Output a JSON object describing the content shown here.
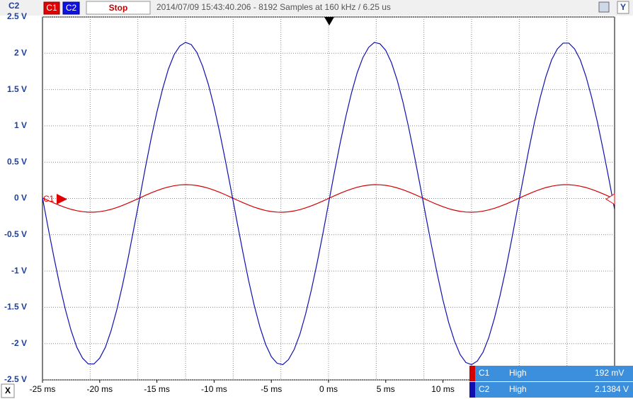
{
  "toolbar": {
    "stop": "Stop",
    "info": "2014/07/09 15:43:40.206 - 8192 Samples at 160 kHz / 6.25 us",
    "y_button": "Y",
    "x_button": "X"
  },
  "chart_data": {
    "type": "line",
    "x": [
      -25,
      -24.5,
      -24,
      -23.5,
      -23,
      -22.5,
      -22,
      -21.5,
      -21,
      -20.5,
      -20,
      -19.5,
      -19,
      -18.5,
      -18,
      -17.5,
      -17,
      -16.5,
      -16,
      -15.5,
      -15,
      -14.5,
      -14,
      -13.5,
      -13,
      -12.5,
      -12,
      -11.5,
      -11,
      -10.5,
      -10,
      -9.5,
      -9,
      -8.5,
      -8,
      -7.5,
      -7,
      -6.5,
      -6,
      -5.5,
      -5,
      -4.5,
      -4,
      -3.5,
      -3,
      -2.5,
      -2,
      -1.5,
      -1,
      -0.5,
      0,
      0.5,
      1,
      1.5,
      2,
      2.5,
      3,
      3.5,
      4,
      4.5,
      5,
      5.5,
      6,
      6.5,
      7,
      7.5,
      8,
      8.5,
      9,
      9.5,
      10,
      10.5,
      11,
      11.5,
      12,
      12.5,
      13,
      13.5,
      14,
      14.5,
      15,
      15.5,
      16,
      16.5,
      17,
      17.5,
      18,
      18.5,
      19,
      19.5,
      20,
      20.5,
      21,
      21.5,
      22,
      22.5,
      23,
      23.5,
      24,
      24.5,
      25
    ],
    "series": [
      {
        "name": "C1",
        "color": "#d40000",
        "values": [
          0.007,
          -0.029,
          -0.063,
          -0.096,
          -0.125,
          -0.15,
          -0.169,
          -0.182,
          -0.189,
          -0.189,
          -0.182,
          -0.169,
          -0.15,
          -0.125,
          -0.096,
          -0.063,
          -0.029,
          0.007,
          0.043,
          0.077,
          0.108,
          0.136,
          0.158,
          0.175,
          0.186,
          0.19,
          0.187,
          0.178,
          0.162,
          0.141,
          0.114,
          0.083,
          0.05,
          0.014,
          -0.022,
          -0.057,
          -0.09,
          -0.12,
          -0.145,
          -0.166,
          -0.18,
          -0.188,
          -0.19,
          -0.184,
          -0.172,
          -0.154,
          -0.13,
          -0.102,
          -0.07,
          -0.036,
          0,
          0.036,
          0.07,
          0.102,
          0.13,
          0.154,
          0.172,
          0.184,
          0.19,
          0.188,
          0.18,
          0.166,
          0.145,
          0.12,
          0.09,
          0.057,
          0.022,
          -0.014,
          -0.05,
          -0.083,
          -0.114,
          -0.141,
          -0.162,
          -0.178,
          -0.187,
          -0.19,
          -0.186,
          -0.175,
          -0.158,
          -0.136,
          -0.108,
          -0.077,
          -0.043,
          -0.007,
          0.029,
          0.063,
          0.096,
          0.125,
          0.15,
          0.169,
          0.182,
          0.189,
          0.189,
          0.182,
          0.169,
          0.15,
          0.125,
          0.096,
          0.063,
          0.029,
          -0.007
        ]
      },
      {
        "name": "C2",
        "color": "#1010b0",
        "values": [
          0.01,
          -0.41,
          -0.81,
          -1.19,
          -1.53,
          -1.82,
          -2.05,
          -2.2,
          -2.28,
          -2.28,
          -2.2,
          -2.05,
          -1.82,
          -1.53,
          -1.19,
          -0.81,
          -0.4,
          0.01,
          0.43,
          0.83,
          1.19,
          1.51,
          1.78,
          1.98,
          2.1,
          2.15,
          2.12,
          2.01,
          1.82,
          1.57,
          1.26,
          0.9,
          0.51,
          0.1,
          -0.32,
          -0.73,
          -1.12,
          -1.47,
          -1.77,
          -2.01,
          -2.18,
          -2.27,
          -2.29,
          -2.22,
          -2.08,
          -1.87,
          -1.59,
          -1.26,
          -0.89,
          -0.49,
          -0.07,
          0.35,
          0.75,
          1.12,
          1.45,
          1.73,
          1.94,
          2.08,
          2.15,
          2.13,
          2.04,
          1.87,
          1.63,
          1.33,
          0.98,
          0.59,
          0.18,
          -0.24,
          -0.65,
          -1.04,
          -1.4,
          -1.71,
          -1.96,
          -2.15,
          -2.26,
          -2.29,
          -2.24,
          -2.12,
          -1.92,
          -1.65,
          -1.33,
          -0.97,
          -0.57,
          -0.15,
          0.26,
          0.67,
          1.05,
          1.39,
          1.68,
          1.91,
          2.06,
          2.14,
          2.14,
          2.06,
          1.91,
          1.68,
          1.39,
          1.05,
          0.67,
          0.27,
          -0.15
        ]
      }
    ],
    "xlim": [
      -25,
      25
    ],
    "xticks": [
      {
        "value": -25,
        "label": "-25 ms"
      },
      {
        "value": -20,
        "label": "-20 ms"
      },
      {
        "value": -15,
        "label": "-15 ms"
      },
      {
        "value": -10,
        "label": "-10 ms"
      },
      {
        "value": -5,
        "label": "-5 ms"
      },
      {
        "value": 0,
        "label": "0 ms"
      },
      {
        "value": 5,
        "label": "5 ms"
      },
      {
        "value": 10,
        "label": "10 ms"
      }
    ],
    "ylim": [
      -2.5,
      2.5
    ],
    "yticks": [
      {
        "value": 2.5,
        "label": "2.5 V"
      },
      {
        "value": 2,
        "label": "2 V"
      },
      {
        "value": 1.5,
        "label": "1.5 V"
      },
      {
        "value": 1,
        "label": "1 V"
      },
      {
        "value": 0.5,
        "label": "0.5 V"
      },
      {
        "value": 0,
        "label": "0 V"
      },
      {
        "value": -0.5,
        "label": "-0.5 V"
      },
      {
        "value": -1,
        "label": "-1 V"
      },
      {
        "value": -1.5,
        "label": "-1.5 V"
      },
      {
        "value": -2,
        "label": "-2 V"
      },
      {
        "value": -2.5,
        "label": "-2.5 V"
      }
    ],
    "grid": true
  },
  "measurements": {
    "rows": [
      [
        "C1",
        "High",
        "192 mV"
      ],
      [
        "C2",
        "High",
        "2.1384 V"
      ]
    ]
  }
}
